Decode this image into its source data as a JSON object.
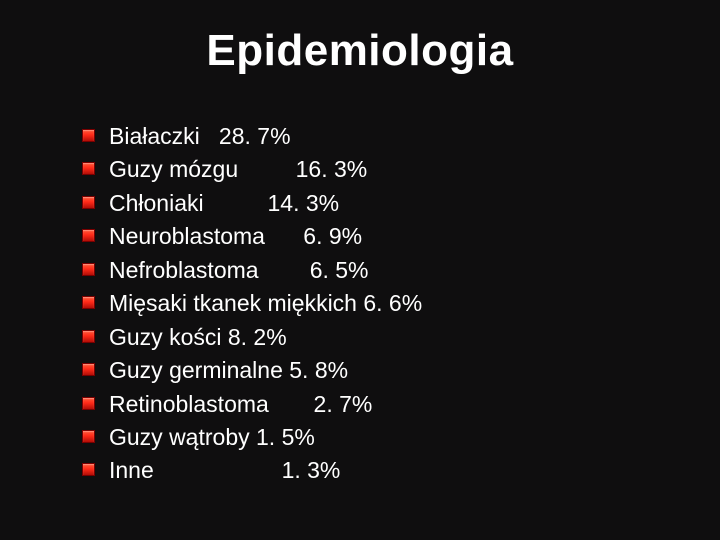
{
  "slide": {
    "title": "Epidemiologia",
    "title_color": "#ffffff",
    "background_color": "#0f0e0f",
    "bullet_color_gradient": [
      "#ff5a3a",
      "#ff2a18",
      "#b30e07"
    ],
    "bullet_border": "#7a0000",
    "title_fontsize": 44,
    "item_fontsize": 23,
    "items": [
      {
        "text": "Białaczki   28. 7%"
      },
      {
        "text": "Guzy mózgu         16. 3%"
      },
      {
        "text": "Chłoniaki          14. 3%"
      },
      {
        "text": "Neuroblastoma      6. 9%"
      },
      {
        "text": "Nefroblastoma        6. 5%"
      },
      {
        "text": "Mięsaki tkanek miękkich 6. 6%"
      },
      {
        "text": "Guzy kości 8. 2%"
      },
      {
        "text": "Guzy germinalne 5. 8%"
      },
      {
        "text": "Retinoblastoma       2. 7%"
      },
      {
        "text": "Guzy wątroby 1. 5%"
      },
      {
        "text": "Inne                    1. 3%"
      }
    ]
  }
}
